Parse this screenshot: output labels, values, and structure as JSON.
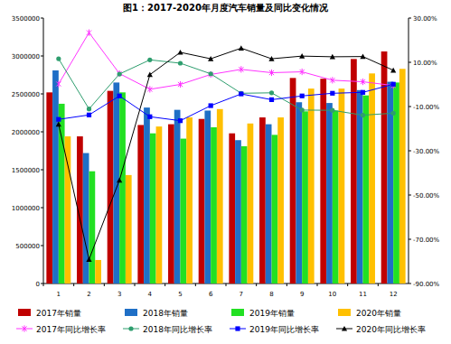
{
  "chart_data": {
    "type": "bar",
    "title": "图1：2017-2020年月度汽车销量及同比变化情况",
    "categories": [
      "1",
      "2",
      "3",
      "4",
      "5",
      "6",
      "7",
      "8",
      "9",
      "10",
      "11",
      "12"
    ],
    "ylim": [
      0,
      3500000
    ],
    "yticks": [
      0,
      500000,
      1000000,
      1500000,
      2000000,
      2500000,
      3000000,
      3500000
    ],
    "y2lim": [
      -90,
      30
    ],
    "y2ticks": [
      {
        "value": 30,
        "label": "30.00%"
      },
      {
        "value": 10,
        "label": "10.00%"
      },
      {
        "value": -10,
        "label": "-10.00%"
      },
      {
        "value": -30,
        "label": "-30.00%"
      },
      {
        "value": -50,
        "label": "-50.00%"
      },
      {
        "value": -70,
        "label": "-70.00%"
      },
      {
        "value": -90,
        "label": "-90.00%"
      }
    ],
    "grid": false,
    "legend": "bottom",
    "series": [
      {
        "name": "2017年销量",
        "type": "bar",
        "color": "#c00000",
        "values": [
          2520000,
          1940000,
          2540000,
          2090000,
          2100000,
          2170000,
          1980000,
          2190000,
          2710000,
          2700000,
          2960000,
          3060000
        ]
      },
      {
        "name": "2018年销量",
        "type": "bar",
        "color": "#1f6fc6",
        "values": [
          2810000,
          1720000,
          2650000,
          2320000,
          2290000,
          2280000,
          1890000,
          2100000,
          2390000,
          2380000,
          2550000,
          2660000
        ]
      },
      {
        "name": "2019年销量",
        "type": "bar",
        "color": "#22e022",
        "values": [
          2370000,
          1480000,
          2520000,
          1980000,
          1910000,
          2060000,
          1810000,
          1960000,
          2270000,
          2280000,
          2480000,
          2650000
        ]
      },
      {
        "name": "2020年销量",
        "type": "bar",
        "color": "#ffc000",
        "values": [
          1940000,
          310000,
          1430000,
          2070000,
          2190000,
          2300000,
          2110000,
          2190000,
          2570000,
          2570000,
          2770000,
          2830000
        ]
      },
      {
        "name": "2017年同比增长率",
        "type": "line",
        "axis": "y2",
        "color": "#ff33ff",
        "marker": "x",
        "values": [
          0.2,
          23.4,
          4.9,
          -2.2,
          0,
          4.5,
          6.8,
          5.3,
          5.7,
          1.9,
          1.2,
          -0.5
        ]
      },
      {
        "name": "2018年同比增长率",
        "type": "line",
        "axis": "y2",
        "color": "#2e9e6e",
        "marker": "circle",
        "values": [
          11.6,
          -11.1,
          4.7,
          11.1,
          9.6,
          4.8,
          -4,
          -3.8,
          -11.6,
          -11.7,
          -13.9,
          -13
        ]
      },
      {
        "name": "2019年同比增长率",
        "type": "line",
        "axis": "y2",
        "color": "#0000ff",
        "marker": "square",
        "values": [
          -15.8,
          -13.8,
          -5.2,
          -14.6,
          -16.4,
          -9.6,
          -4.3,
          -6.9,
          -5.2,
          -4,
          -3.6,
          0.1
        ]
      },
      {
        "name": "2020年同比增长率",
        "type": "line",
        "axis": "y2",
        "color": "#000000",
        "marker": "triangle",
        "values": [
          -18,
          -79.1,
          -43.3,
          4.4,
          14.5,
          11.6,
          16.4,
          11.6,
          12.8,
          12.5,
          12.6,
          6.4
        ]
      }
    ]
  }
}
